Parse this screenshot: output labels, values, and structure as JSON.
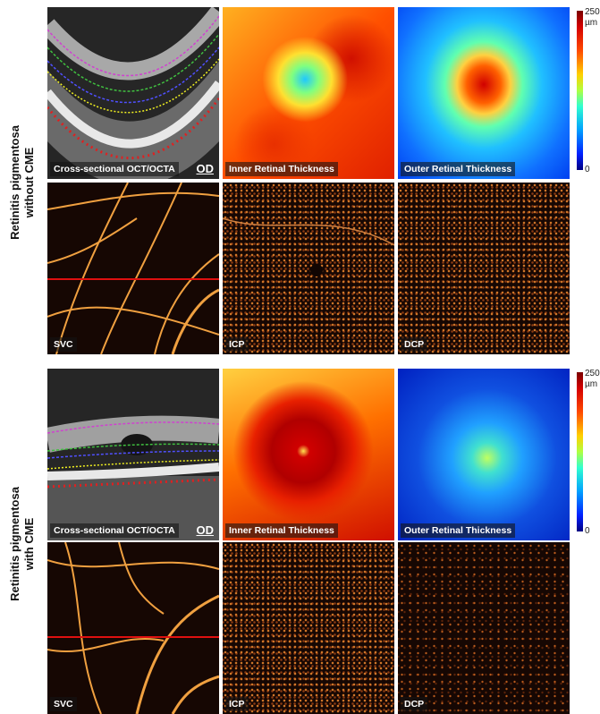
{
  "groups": [
    {
      "label": [
        "Retinitis pigmentosa",
        "without CME"
      ],
      "panels": [
        "Cross-sectional OCT/OCTA",
        "Inner Retinal Thickness",
        "Outer Retinal Thickness",
        "SVC",
        "ICP",
        "DCP"
      ],
      "eye": "OD",
      "colorbar": {
        "max": 250,
        "unit": "µm",
        "min": 0
      }
    },
    {
      "label": [
        "Retinitis pigmentosa",
        "with CME"
      ],
      "panels": [
        "Cross-sectional OCT/OCTA",
        "Inner Retinal Thickness",
        "Outer Retinal Thickness",
        "SVC",
        "ICP",
        "DCP"
      ],
      "eye": "OD",
      "colorbar": {
        "max": 250,
        "unit": "µm",
        "min": 0
      }
    }
  ]
}
